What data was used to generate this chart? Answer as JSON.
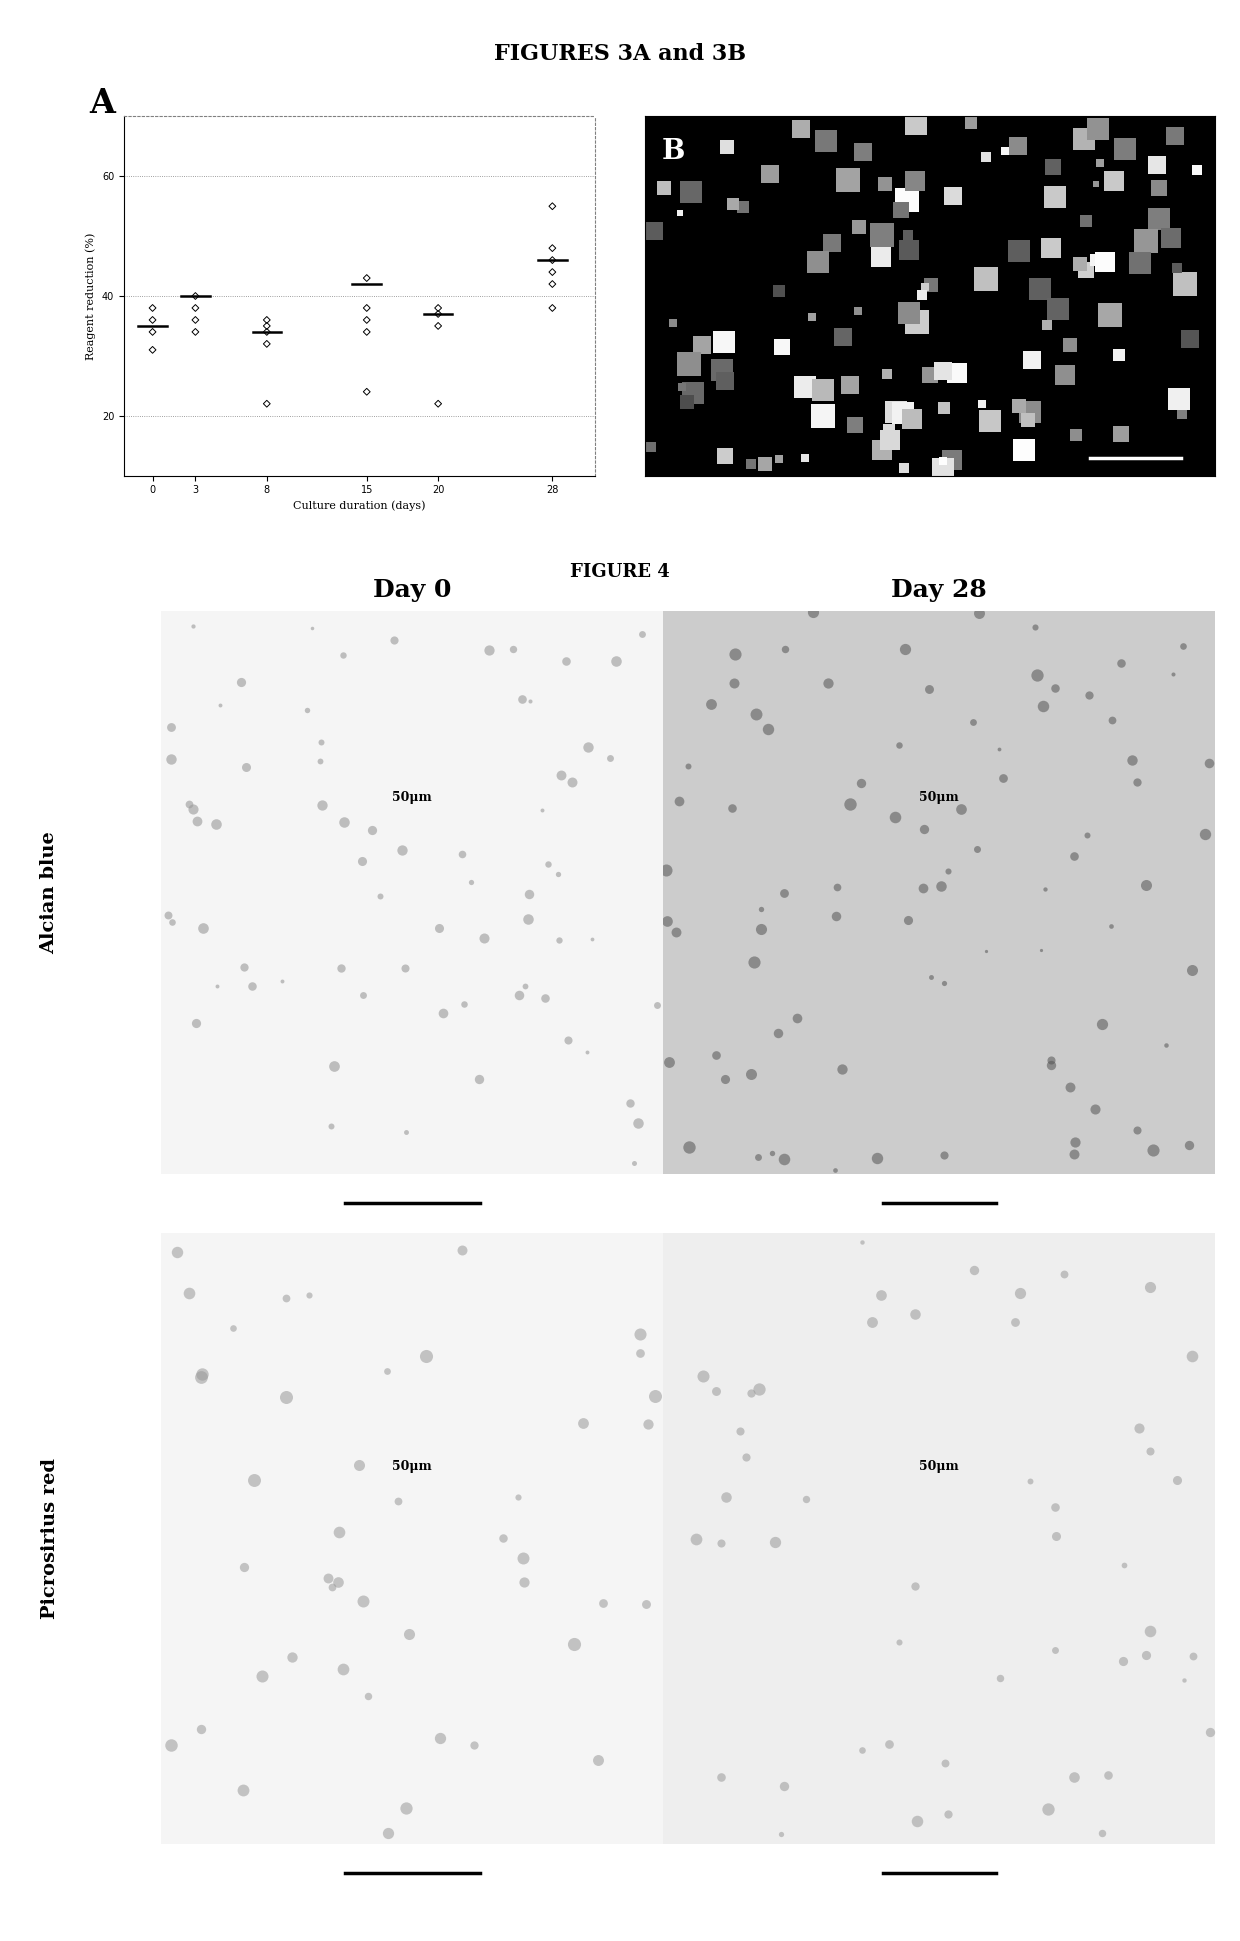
{
  "fig_title_top": "FIGURES 3A and 3B",
  "fig_title_bottom": "FIGURE 4",
  "panel_A_label": "A",
  "panel_B_label": "B",
  "xlabel_A": "Culture duration (days)",
  "ylabel_A": "Reagent reduction (%)",
  "xticks_A": [
    0,
    3,
    8,
    15,
    20,
    28
  ],
  "yticks_A": [
    20,
    40,
    60
  ],
  "ylim_A": [
    10,
    70
  ],
  "xlim_A": [
    -2,
    31
  ],
  "scatter_data": {
    "day0": [
      36,
      34,
      31,
      38
    ],
    "day3": [
      40,
      36,
      38,
      34
    ],
    "day8": [
      35,
      32,
      34,
      36,
      22
    ],
    "day15": [
      43,
      38,
      36,
      34,
      24
    ],
    "day20": [
      37,
      35,
      38,
      22
    ],
    "day28": [
      48,
      46,
      44,
      42,
      38,
      55
    ]
  },
  "mean_data": {
    "day0": 35,
    "day3": 40,
    "day8": 34,
    "day15": 42,
    "day20": 37,
    "day28": 46
  },
  "grid_lines": [
    20,
    40,
    60
  ],
  "col_labels": [
    "Day 0",
    "Day 28"
  ],
  "row_labels": [
    "Alcian blue",
    "Picrosirius red"
  ],
  "scale_bar_label": "50μm",
  "bg_day0": "#f5f5f5",
  "bg_day28_alcian": "#cccccc",
  "bg_day28_picro": "#e8e8e8",
  "bg_picro_day0": "#eeeeee",
  "dot_color_light": "#999999",
  "dot_color_dark": "#555555"
}
